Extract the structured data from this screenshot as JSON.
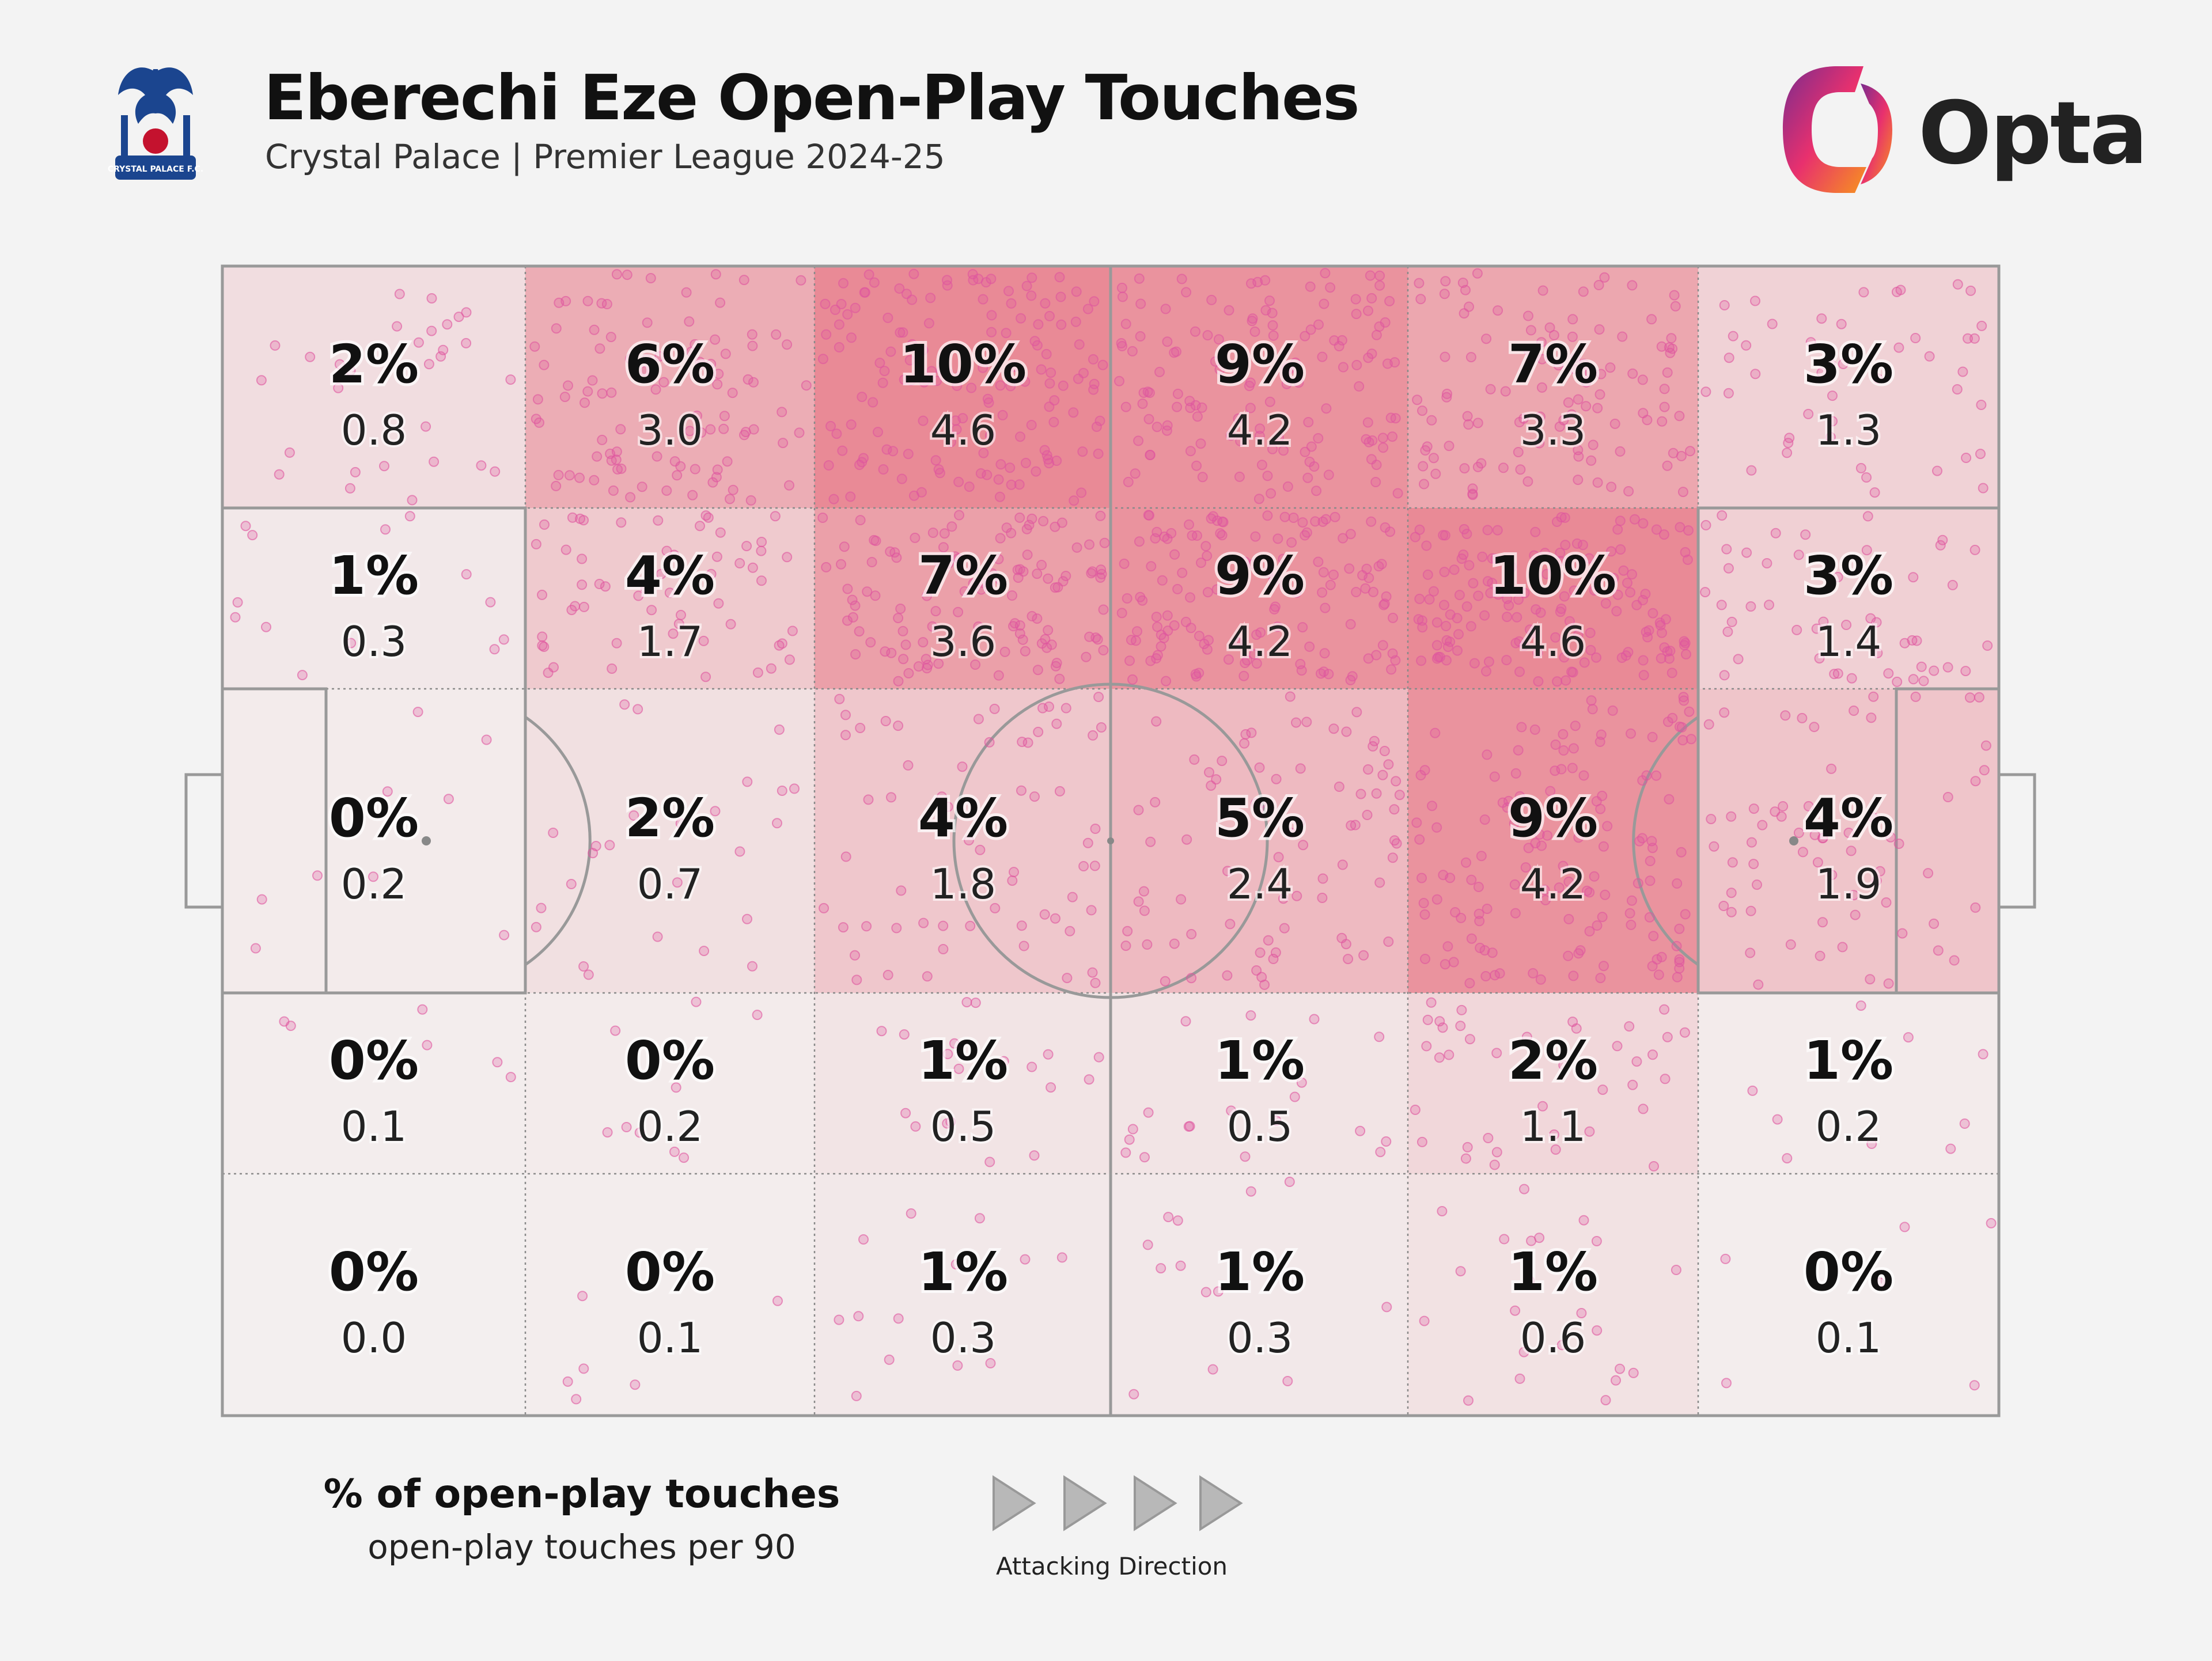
{
  "header": {
    "title": "Eberechi Eze Open-Play Touches",
    "subtitle": "Crystal Palace | Premier League 2024-25",
    "club_crest_text": "CRYSTAL PALACE F.C.",
    "brand_logo": "Opta"
  },
  "colors": {
    "background": "#f3f3f3",
    "heat_max": "#e98a96",
    "heat_min": "#f3efef",
    "dot": "#e0559f",
    "pitch_line": "#999999",
    "crest_blue": "#1b458f",
    "crest_red": "#c4122e",
    "opta_gradient": [
      "#7a2c8e",
      "#e8306e",
      "#f7941d"
    ]
  },
  "chart_data": {
    "type": "heatmap",
    "title": "Eberechi Eze Open-Play Touches",
    "subtitle": "Crystal Palace | Premier League 2024-25",
    "columns": 6,
    "rows": 5,
    "attacking_direction": "left-to-right",
    "zones": [
      [
        {
          "pct": "2%",
          "per90": "0.8"
        },
        {
          "pct": "6%",
          "per90": "3.0"
        },
        {
          "pct": "10%",
          "per90": "4.6"
        },
        {
          "pct": "9%",
          "per90": "4.2"
        },
        {
          "pct": "7%",
          "per90": "3.3"
        },
        {
          "pct": "3%",
          "per90": "1.3"
        }
      ],
      [
        {
          "pct": "1%",
          "per90": "0.3"
        },
        {
          "pct": "4%",
          "per90": "1.7"
        },
        {
          "pct": "7%",
          "per90": "3.6"
        },
        {
          "pct": "9%",
          "per90": "4.2"
        },
        {
          "pct": "10%",
          "per90": "4.6"
        },
        {
          "pct": "3%",
          "per90": "1.4"
        }
      ],
      [
        {
          "pct": "0%",
          "per90": "0.2"
        },
        {
          "pct": "2%",
          "per90": "0.7"
        },
        {
          "pct": "4%",
          "per90": "1.8"
        },
        {
          "pct": "5%",
          "per90": "2.4"
        },
        {
          "pct": "9%",
          "per90": "4.2"
        },
        {
          "pct": "4%",
          "per90": "1.9"
        }
      ],
      [
        {
          "pct": "0%",
          "per90": "0.1"
        },
        {
          "pct": "0%",
          "per90": "0.2"
        },
        {
          "pct": "1%",
          "per90": "0.5"
        },
        {
          "pct": "1%",
          "per90": "0.5"
        },
        {
          "pct": "2%",
          "per90": "1.1"
        },
        {
          "pct": "1%",
          "per90": "0.2"
        }
      ],
      [
        {
          "pct": "0%",
          "per90": "0.0"
        },
        {
          "pct": "0%",
          "per90": "0.1"
        },
        {
          "pct": "1%",
          "per90": "0.3"
        },
        {
          "pct": "1%",
          "per90": "0.3"
        },
        {
          "pct": "1%",
          "per90": "0.6"
        },
        {
          "pct": "0%",
          "per90": "0.1"
        }
      ]
    ],
    "legend": {
      "primary": "% of open-play touches",
      "secondary": "open-play touches per 90"
    }
  },
  "direction": {
    "label": "Attacking Direction",
    "arrow_count": 4
  }
}
